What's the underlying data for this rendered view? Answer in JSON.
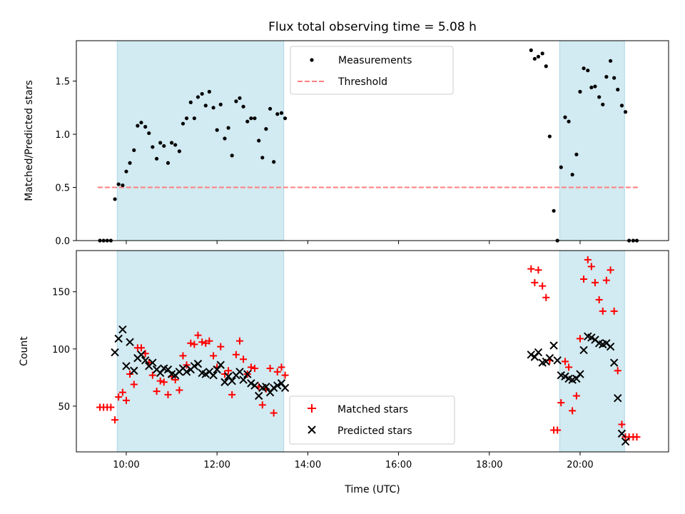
{
  "figure": {
    "title": "Flux total observing time = 5.08 h",
    "xlabel": "Time (UTC)",
    "xticks": [
      {
        "t": 10,
        "label": "10:00"
      },
      {
        "t": 12,
        "label": "12:00"
      },
      {
        "t": 14,
        "label": "14:00"
      },
      {
        "t": 16,
        "label": "16:00"
      },
      {
        "t": 18,
        "label": "18:00"
      },
      {
        "t": 20,
        "label": "20:00"
      }
    ],
    "colors": {
      "shade": "#add8e6",
      "measurement": "#000000",
      "threshold": "#ff7f7f",
      "matched": "#ff0000",
      "predicted": "#000000"
    }
  },
  "chart_data": [
    {
      "type": "scatter",
      "ylabel": "Matched/Predicted stars",
      "xlim": [
        8.9,
        21.95
      ],
      "ylim": [
        0,
        1.88
      ],
      "yticks": [
        "0.0",
        "0.5",
        "1.0",
        "1.5"
      ],
      "ytick_values": [
        0,
        0.5,
        1.0,
        1.5
      ],
      "shaded_intervals": [
        [
          9.8,
          13.47
        ],
        [
          19.55,
          20.98
        ]
      ],
      "legend": {
        "position": "upper center",
        "entries": [
          "Measurements",
          "Threshold"
        ]
      },
      "threshold": {
        "name": "Threshold",
        "y": 0.5,
        "x_range": [
          9.37,
          21.3
        ]
      },
      "series": [
        {
          "name": "Measurements",
          "marker": "dot",
          "points": [
            [
              9.42,
              0
            ],
            [
              9.5,
              0
            ],
            [
              9.58,
              0
            ],
            [
              9.66,
              0
            ],
            [
              9.75,
              0.39
            ],
            [
              9.83,
              0.53
            ],
            [
              9.92,
              0.52
            ],
            [
              10.0,
              0.65
            ],
            [
              10.08,
              0.73
            ],
            [
              10.17,
              0.85
            ],
            [
              10.25,
              1.08
            ],
            [
              10.33,
              1.11
            ],
            [
              10.42,
              1.07
            ],
            [
              10.5,
              1.01
            ],
            [
              10.58,
              0.88
            ],
            [
              10.67,
              0.77
            ],
            [
              10.75,
              0.92
            ],
            [
              10.83,
              0.89
            ],
            [
              10.92,
              0.73
            ],
            [
              11.0,
              0.92
            ],
            [
              11.08,
              0.9
            ],
            [
              11.17,
              0.84
            ],
            [
              11.25,
              1.1
            ],
            [
              11.33,
              1.15
            ],
            [
              11.42,
              1.3
            ],
            [
              11.5,
              1.15
            ],
            [
              11.58,
              1.35
            ],
            [
              11.67,
              1.38
            ],
            [
              11.75,
              1.27
            ],
            [
              11.83,
              1.4
            ],
            [
              11.92,
              1.25
            ],
            [
              12.0,
              1.04
            ],
            [
              12.08,
              1.28
            ],
            [
              12.17,
              0.96
            ],
            [
              12.25,
              1.06
            ],
            [
              12.33,
              0.8
            ],
            [
              12.42,
              1.31
            ],
            [
              12.5,
              1.34
            ],
            [
              12.58,
              1.26
            ],
            [
              12.67,
              1.12
            ],
            [
              12.75,
              1.15
            ],
            [
              12.83,
              1.15
            ],
            [
              12.92,
              0.94
            ],
            [
              13.0,
              0.78
            ],
            [
              13.08,
              1.05
            ],
            [
              13.17,
              1.24
            ],
            [
              13.25,
              0.74
            ],
            [
              13.33,
              1.19
            ],
            [
              13.42,
              1.2
            ],
            [
              13.5,
              1.15
            ],
            [
              18.92,
              1.79
            ],
            [
              19.0,
              1.71
            ],
            [
              19.08,
              1.73
            ],
            [
              19.17,
              1.76
            ],
            [
              19.25,
              1.64
            ],
            [
              19.33,
              0.98
            ],
            [
              19.42,
              0.28
            ],
            [
              19.5,
              0
            ],
            [
              19.58,
              0.69
            ],
            [
              19.67,
              1.16
            ],
            [
              19.75,
              1.12
            ],
            [
              19.83,
              0.62
            ],
            [
              19.92,
              0.81
            ],
            [
              20.0,
              1.4
            ],
            [
              20.08,
              1.62
            ],
            [
              20.17,
              1.6
            ],
            [
              20.25,
              1.44
            ],
            [
              20.33,
              1.45
            ],
            [
              20.42,
              1.35
            ],
            [
              20.5,
              1.28
            ],
            [
              20.58,
              1.54
            ],
            [
              20.67,
              1.69
            ],
            [
              20.75,
              1.53
            ],
            [
              20.83,
              1.42
            ],
            [
              20.92,
              1.27
            ],
            [
              21.0,
              1.21
            ],
            [
              21.08,
              0
            ],
            [
              21.17,
              0
            ],
            [
              21.25,
              0
            ]
          ]
        }
      ]
    },
    {
      "type": "scatter",
      "ylabel": "Count",
      "xlim": [
        8.9,
        21.95
      ],
      "ylim": [
        10,
        186
      ],
      "yticks": [
        "50",
        "100",
        "150"
      ],
      "ytick_values": [
        50,
        100,
        150
      ],
      "shaded_intervals": [
        [
          9.8,
          13.47
        ],
        [
          19.55,
          20.98
        ]
      ],
      "legend": {
        "position": "lower center",
        "entries": [
          "Matched stars",
          "Predicted stars"
        ]
      },
      "series": [
        {
          "name": "Matched stars",
          "marker": "plus",
          "points": [
            [
              9.42,
              49
            ],
            [
              9.5,
              49
            ],
            [
              9.58,
              49
            ],
            [
              9.66,
              49
            ],
            [
              9.75,
              38
            ],
            [
              9.83,
              58
            ],
            [
              9.92,
              62
            ],
            [
              10.0,
              55
            ],
            [
              10.08,
              78
            ],
            [
              10.17,
              69
            ],
            [
              10.25,
              101
            ],
            [
              10.33,
              101
            ],
            [
              10.42,
              96
            ],
            [
              10.5,
              88
            ],
            [
              10.58,
              77
            ],
            [
              10.67,
              63
            ],
            [
              10.75,
              72
            ],
            [
              10.83,
              71
            ],
            [
              10.92,
              60
            ],
            [
              11.0,
              76
            ],
            [
              11.08,
              73
            ],
            [
              11.17,
              64
            ],
            [
              11.25,
              94
            ],
            [
              11.33,
              86
            ],
            [
              11.42,
              105
            ],
            [
              11.5,
              104
            ],
            [
              11.58,
              112
            ],
            [
              11.67,
              106
            ],
            [
              11.75,
              105
            ],
            [
              11.83,
              107
            ],
            [
              11.92,
              94
            ],
            [
              12.0,
              84
            ],
            [
              12.08,
              102
            ],
            [
              12.17,
              78
            ],
            [
              12.25,
              81
            ],
            [
              12.33,
              60
            ],
            [
              12.42,
              95
            ],
            [
              12.5,
              107
            ],
            [
              12.58,
              91
            ],
            [
              12.67,
              78
            ],
            [
              12.75,
              84
            ],
            [
              12.83,
              83
            ],
            [
              12.92,
              67
            ],
            [
              13.0,
              51
            ],
            [
              13.08,
              65
            ],
            [
              13.17,
              83
            ],
            [
              13.25,
              44
            ],
            [
              13.33,
              80
            ],
            [
              13.42,
              84
            ],
            [
              13.5,
              77
            ],
            [
              18.92,
              170
            ],
            [
              19.0,
              158
            ],
            [
              19.08,
              169
            ],
            [
              19.17,
              155
            ],
            [
              19.25,
              145
            ],
            [
              19.33,
              90
            ],
            [
              19.42,
              29
            ],
            [
              19.5,
              29
            ],
            [
              19.58,
              53
            ],
            [
              19.67,
              89
            ],
            [
              19.75,
              84
            ],
            [
              19.83,
              46
            ],
            [
              19.92,
              59
            ],
            [
              20.0,
              109
            ],
            [
              20.08,
              161
            ],
            [
              20.17,
              178
            ],
            [
              20.25,
              172
            ],
            [
              20.33,
              158
            ],
            [
              20.42,
              143
            ],
            [
              20.5,
              133
            ],
            [
              20.58,
              160
            ],
            [
              20.67,
              169
            ],
            [
              20.75,
              133
            ],
            [
              20.83,
              81
            ],
            [
              20.92,
              34
            ],
            [
              21.0,
              23
            ],
            [
              21.08,
              23
            ],
            [
              21.17,
              23
            ],
            [
              21.25,
              23
            ]
          ]
        },
        {
          "name": "Predicted stars",
          "marker": "x",
          "points": [
            [
              9.75,
              97
            ],
            [
              9.83,
              109
            ],
            [
              9.92,
              117
            ],
            [
              10.0,
              85
            ],
            [
              10.08,
              106
            ],
            [
              10.17,
              81
            ],
            [
              10.25,
              92
            ],
            [
              10.33,
              95
            ],
            [
              10.42,
              90
            ],
            [
              10.5,
              85
            ],
            [
              10.58,
              88
            ],
            [
              10.67,
              82
            ],
            [
              10.75,
              79
            ],
            [
              10.83,
              83
            ],
            [
              10.92,
              82
            ],
            [
              11.0,
              78
            ],
            [
              11.08,
              77
            ],
            [
              11.17,
              80
            ],
            [
              11.25,
              83
            ],
            [
              11.33,
              80
            ],
            [
              11.42,
              82
            ],
            [
              11.5,
              85
            ],
            [
              11.58,
              87
            ],
            [
              11.67,
              79
            ],
            [
              11.75,
              78
            ],
            [
              11.83,
              80
            ],
            [
              11.92,
              77
            ],
            [
              12.0,
              82
            ],
            [
              12.08,
              86
            ],
            [
              12.17,
              71
            ],
            [
              12.25,
              76
            ],
            [
              12.33,
              72
            ],
            [
              12.42,
              77
            ],
            [
              12.5,
              80
            ],
            [
              12.58,
              73
            ],
            [
              12.67,
              78
            ],
            [
              12.75,
              70
            ],
            [
              12.83,
              68
            ],
            [
              12.92,
              59
            ],
            [
              13.0,
              66
            ],
            [
              13.08,
              67
            ],
            [
              13.17,
              62
            ],
            [
              13.25,
              66
            ],
            [
              13.33,
              68
            ],
            [
              13.42,
              70
            ],
            [
              13.5,
              66
            ],
            [
              18.92,
              95
            ],
            [
              19.0,
              93
            ],
            [
              19.08,
              97
            ],
            [
              19.17,
              88
            ],
            [
              19.25,
              89
            ],
            [
              19.33,
              92
            ],
            [
              19.42,
              103
            ],
            [
              19.5,
              90
            ],
            [
              19.58,
              77
            ],
            [
              19.67,
              76
            ],
            [
              19.75,
              74
            ],
            [
              19.83,
              73
            ],
            [
              19.92,
              74
            ],
            [
              20.0,
              78
            ],
            [
              20.08,
              99
            ],
            [
              20.17,
              111
            ],
            [
              20.25,
              110
            ],
            [
              20.33,
              108
            ],
            [
              20.42,
              105
            ],
            [
              20.5,
              104
            ],
            [
              20.58,
              105
            ],
            [
              20.67,
              102
            ],
            [
              20.75,
              88
            ],
            [
              20.83,
              57
            ],
            [
              20.92,
              26
            ],
            [
              21.0,
              19
            ]
          ]
        }
      ]
    }
  ]
}
